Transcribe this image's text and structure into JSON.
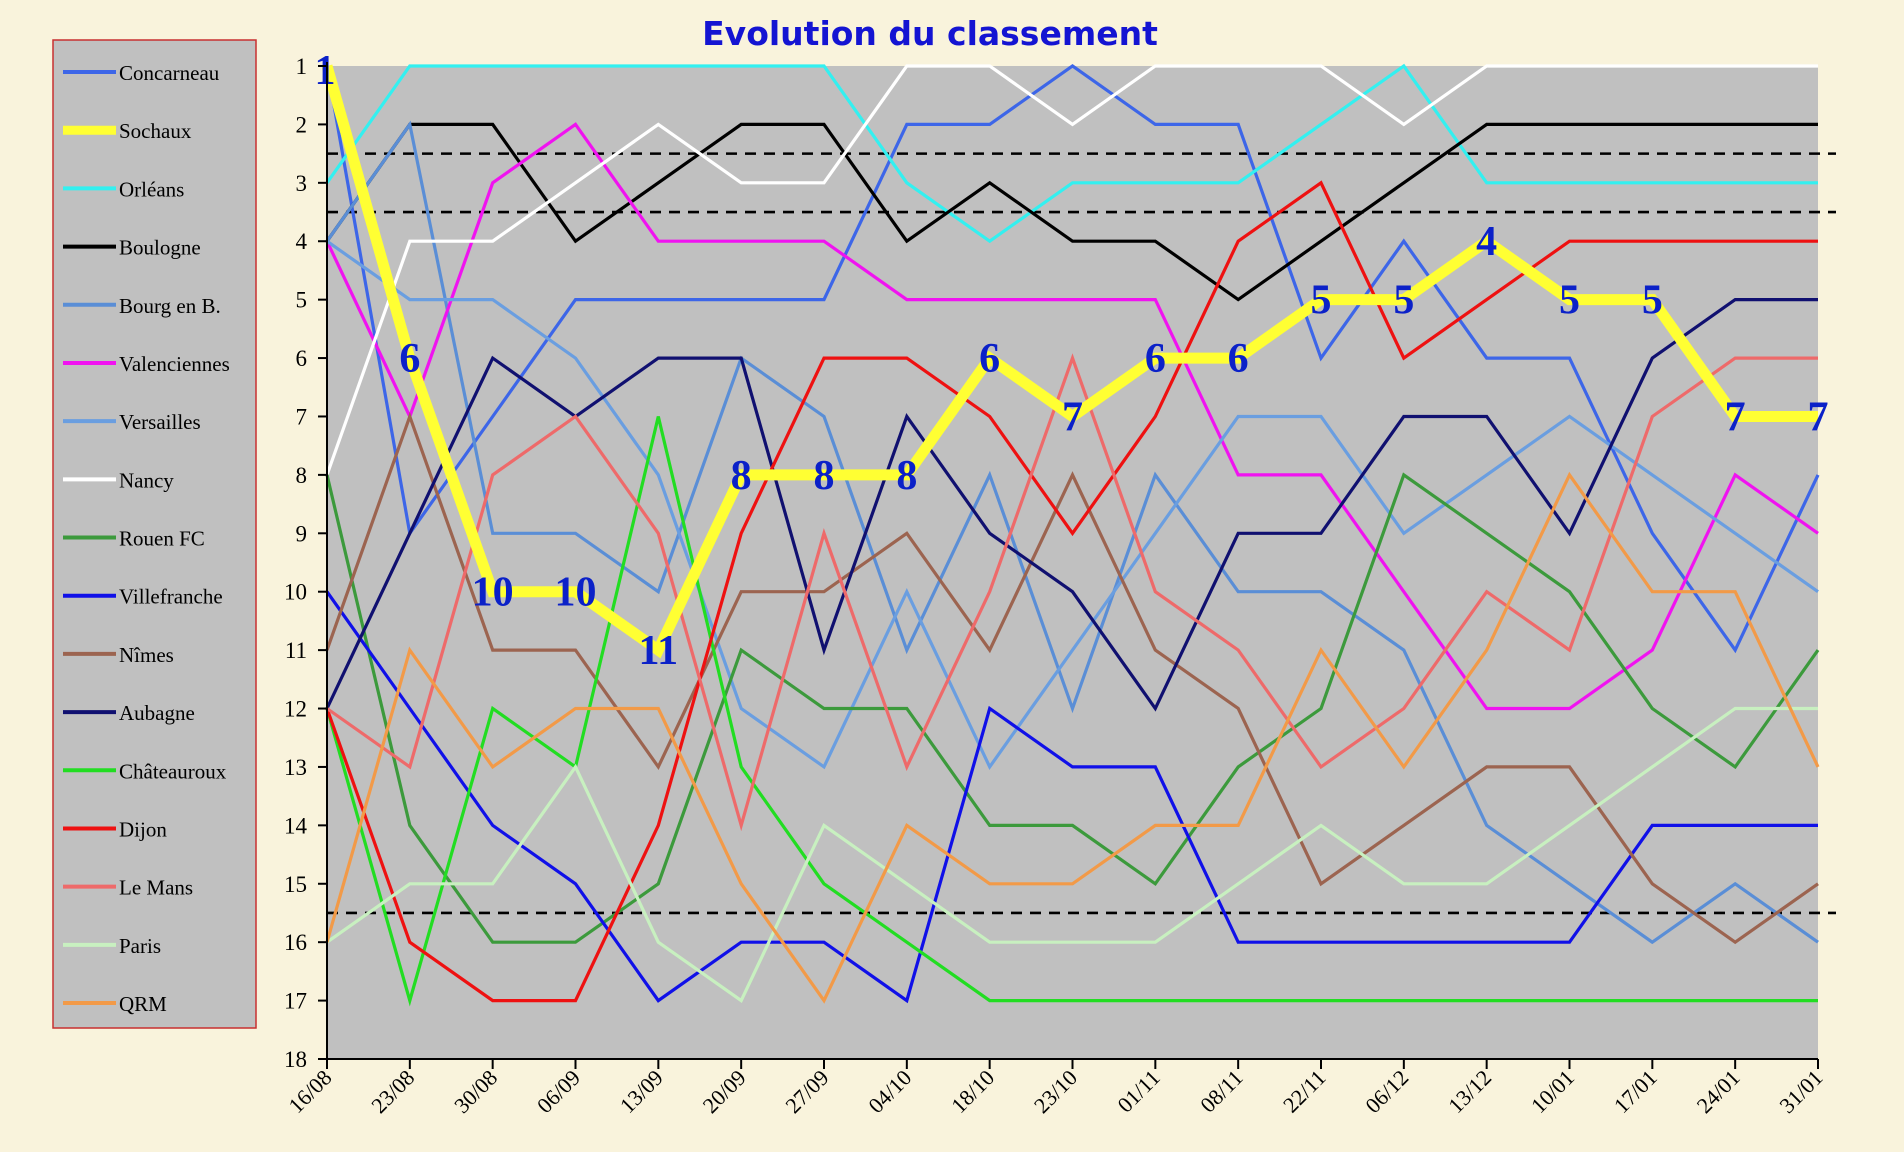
{
  "chart_data": {
    "type": "line",
    "title": "Evolution du classement",
    "xlabel": "",
    "ylabel": "",
    "ylim": [
      1,
      18
    ],
    "y_inverted": true,
    "y_ticks": [
      1,
      2,
      3,
      4,
      5,
      6,
      7,
      8,
      9,
      10,
      11,
      12,
      13,
      14,
      15,
      16,
      17,
      18
    ],
    "categories": [
      "16/08",
      "23/08",
      "30/08",
      "06/09",
      "13/09",
      "20/09",
      "27/09",
      "04/10",
      "18/10",
      "23/10",
      "01/11",
      "08/11",
      "22/11",
      "06/12",
      "13/12",
      "10/01",
      "17/01",
      "24/01",
      "31/01"
    ],
    "grid": false,
    "background_color": "#c0c0c0",
    "legend_position": "left",
    "reference_lines": [
      2.5,
      3.5,
      15.5
    ],
    "highlight_series": "Sochaux",
    "highlight_label_color": "#0b21c8",
    "series": [
      {
        "name": "Concarneau",
        "color": "#3d66e8",
        "values": [
          1,
          9,
          7,
          5,
          5,
          5,
          5,
          2,
          2,
          1,
          2,
          2,
          6,
          4,
          6,
          6,
          9,
          11,
          8
        ]
      },
      {
        "name": "Sochaux",
        "color": "#ffff33",
        "values": [
          1,
          6,
          10,
          10,
          11,
          8,
          8,
          8,
          6,
          7,
          6,
          6,
          5,
          5,
          4,
          5,
          5,
          7,
          7
        ]
      },
      {
        "name": "Orléans",
        "color": "#33f0f0",
        "values": [
          3,
          1,
          1,
          1,
          1,
          1,
          1,
          3,
          4,
          3,
          3,
          3,
          2,
          1,
          3,
          3,
          3,
          3,
          3
        ]
      },
      {
        "name": "Boulogne",
        "color": "#000000",
        "values": [
          4,
          2,
          2,
          4,
          3,
          2,
          2,
          4,
          3,
          4,
          4,
          5,
          4,
          3,
          2,
          2,
          2,
          2,
          2
        ]
      },
      {
        "name": "Bourg en B.",
        "color": "#5a8ed6",
        "values": [
          4,
          2,
          9,
          9,
          10,
          6,
          7,
          11,
          8,
          12,
          8,
          10,
          10,
          11,
          14,
          15,
          16,
          15,
          16
        ]
      },
      {
        "name": "Valenciennes",
        "color": "#f013f0",
        "values": [
          4,
          7,
          3,
          2,
          4,
          4,
          4,
          5,
          5,
          5,
          5,
          8,
          8,
          10,
          12,
          12,
          11,
          8,
          9
        ]
      },
      {
        "name": "Versailles",
        "color": "#6a9ee0",
        "values": [
          4,
          5,
          5,
          6,
          8,
          12,
          13,
          10,
          13,
          11,
          9,
          7,
          7,
          9,
          8,
          7,
          8,
          9,
          10
        ]
      },
      {
        "name": "Nancy",
        "color": "#ffffff",
        "values": [
          8,
          4,
          4,
          3,
          2,
          3,
          3,
          1,
          1,
          2,
          1,
          1,
          1,
          2,
          1,
          1,
          1,
          1,
          1
        ]
      },
      {
        "name": "Rouen FC",
        "color": "#3c9a3c",
        "values": [
          8,
          14,
          16,
          16,
          15,
          11,
          12,
          12,
          14,
          14,
          15,
          13,
          12,
          8,
          9,
          10,
          12,
          13,
          11
        ]
      },
      {
        "name": "Villefranche",
        "color": "#1010e8",
        "values": [
          10,
          12,
          14,
          15,
          17,
          16,
          16,
          17,
          12,
          13,
          13,
          16,
          16,
          16,
          16,
          16,
          14,
          14,
          14
        ]
      },
      {
        "name": "Nîmes",
        "color": "#9c6450",
        "values": [
          11,
          7,
          11,
          11,
          13,
          10,
          10,
          9,
          11,
          8,
          11,
          12,
          15,
          14,
          13,
          13,
          15,
          16,
          15
        ]
      },
      {
        "name": "Aubagne",
        "color": "#101070",
        "values": [
          12,
          9,
          6,
          7,
          6,
          6,
          11,
          7,
          9,
          10,
          12,
          9,
          9,
          7,
          7,
          9,
          6,
          5,
          5
        ]
      },
      {
        "name": "Châteauroux",
        "color": "#22dd22",
        "values": [
          12,
          17,
          12,
          13,
          7,
          13,
          15,
          16,
          17,
          17,
          17,
          17,
          17,
          17,
          17,
          17,
          17,
          17,
          17
        ]
      },
      {
        "name": "Dijon",
        "color": "#ee1111",
        "values": [
          12,
          16,
          17,
          17,
          14,
          9,
          6,
          6,
          7,
          9,
          7,
          4,
          3,
          6,
          5,
          4,
          4,
          4,
          4
        ]
      },
      {
        "name": "Le Mans",
        "color": "#ee6a6a",
        "values": [
          12,
          13,
          8,
          7,
          9,
          14,
          9,
          13,
          10,
          6,
          10,
          11,
          13,
          12,
          10,
          11,
          7,
          6,
          6
        ]
      },
      {
        "name": "Paris",
        "color": "#c8f0c0",
        "values": [
          16,
          15,
          15,
          13,
          16,
          17,
          14,
          15,
          16,
          16,
          16,
          15,
          14,
          15,
          15,
          14,
          13,
          12,
          12
        ]
      },
      {
        "name": "QRM",
        "color": "#f29a48",
        "values": [
          16,
          11,
          13,
          12,
          12,
          15,
          17,
          14,
          15,
          15,
          14,
          14,
          11,
          13,
          11,
          8,
          10,
          10,
          13
        ]
      }
    ]
  }
}
